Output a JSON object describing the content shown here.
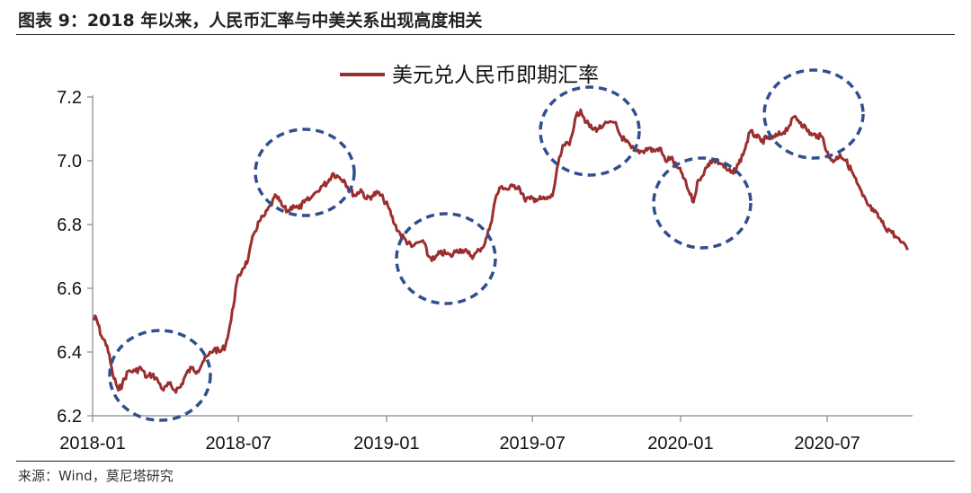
{
  "header": {
    "figure_title": "图表 9：2018 年以来，人民币汇率与中美关系出现高度相关"
  },
  "footer": {
    "source": "来源：Wind，莫尼塔研究"
  },
  "colors": {
    "series_line": "#9b2f2f",
    "highlight_circle": "#2f4f8f",
    "axis": "#888888"
  },
  "chart_data": {
    "type": "line",
    "title": "",
    "xlabel": "",
    "ylabel": "",
    "ylim": [
      6.2,
      7.2
    ],
    "xlim": [
      "2018-01",
      "2020-10"
    ],
    "y_ticks": [
      "6.2",
      "6.4",
      "6.6",
      "6.8",
      "7.0",
      "7.2"
    ],
    "x_ticks": [
      "2018-01",
      "2018-07",
      "2019-01",
      "2019-07",
      "2020-01",
      "2020-07"
    ],
    "grid": false,
    "legend_position": "top-center",
    "series": [
      {
        "name": "美元兑人民币即期汇率",
        "x": [
          "2018-01-02",
          "2018-01-05",
          "2018-01-12",
          "2018-01-19",
          "2018-01-26",
          "2018-02-02",
          "2018-02-07",
          "2018-02-14",
          "2018-02-23",
          "2018-03-02",
          "2018-03-09",
          "2018-03-16",
          "2018-03-23",
          "2018-03-30",
          "2018-04-06",
          "2018-04-13",
          "2018-04-20",
          "2018-04-27",
          "2018-05-04",
          "2018-05-11",
          "2018-05-18",
          "2018-05-25",
          "2018-06-01",
          "2018-06-08",
          "2018-06-15",
          "2018-06-22",
          "2018-06-29",
          "2018-07-06",
          "2018-07-13",
          "2018-07-20",
          "2018-07-27",
          "2018-08-03",
          "2018-08-10",
          "2018-08-17",
          "2018-08-24",
          "2018-08-31",
          "2018-09-07",
          "2018-09-14",
          "2018-09-21",
          "2018-09-28",
          "2018-10-12",
          "2018-10-19",
          "2018-10-26",
          "2018-11-02",
          "2018-11-09",
          "2018-11-16",
          "2018-11-23",
          "2018-11-30",
          "2018-12-07",
          "2018-12-14",
          "2018-12-21",
          "2018-12-28",
          "2019-01-04",
          "2019-01-11",
          "2019-01-18",
          "2019-01-25",
          "2019-02-01",
          "2019-02-15",
          "2019-02-22",
          "2019-03-01",
          "2019-03-08",
          "2019-03-15",
          "2019-03-22",
          "2019-03-29",
          "2019-04-05",
          "2019-04-12",
          "2019-04-19",
          "2019-04-26",
          "2019-05-03",
          "2019-05-10",
          "2019-05-17",
          "2019-05-24",
          "2019-05-31",
          "2019-06-07",
          "2019-06-14",
          "2019-06-21",
          "2019-06-28",
          "2019-07-05",
          "2019-07-12",
          "2019-07-19",
          "2019-07-26",
          "2019-08-02",
          "2019-08-09",
          "2019-08-16",
          "2019-08-23",
          "2019-08-30",
          "2019-09-06",
          "2019-09-13",
          "2019-09-20",
          "2019-09-27",
          "2019-10-11",
          "2019-10-18",
          "2019-10-25",
          "2019-11-01",
          "2019-11-08",
          "2019-11-15",
          "2019-11-22",
          "2019-11-29",
          "2019-12-06",
          "2019-12-13",
          "2019-12-20",
          "2019-12-27",
          "2020-01-03",
          "2020-01-10",
          "2020-01-17",
          "2020-01-23",
          "2020-02-03",
          "2020-02-07",
          "2020-02-14",
          "2020-02-21",
          "2020-02-28",
          "2020-03-06",
          "2020-03-13",
          "2020-03-20",
          "2020-03-27",
          "2020-04-03",
          "2020-04-10",
          "2020-04-17",
          "2020-04-24",
          "2020-05-01",
          "2020-05-08",
          "2020-05-15",
          "2020-05-22",
          "2020-05-29",
          "2020-06-05",
          "2020-06-12",
          "2020-06-19",
          "2020-06-26",
          "2020-07-03",
          "2020-07-10",
          "2020-07-17",
          "2020-07-24",
          "2020-07-31",
          "2020-08-07",
          "2020-08-14",
          "2020-08-21",
          "2020-08-28",
          "2020-09-04",
          "2020-09-11",
          "2020-09-18",
          "2020-09-25",
          "2020-10-09"
        ],
        "values": [
          6.5,
          6.51,
          6.45,
          6.42,
          6.33,
          6.28,
          6.3,
          6.34,
          6.34,
          6.35,
          6.32,
          6.33,
          6.31,
          6.28,
          6.3,
          6.28,
          6.29,
          6.33,
          6.35,
          6.34,
          6.37,
          6.39,
          6.41,
          6.4,
          6.42,
          6.5,
          6.62,
          6.66,
          6.69,
          6.77,
          6.81,
          6.83,
          6.86,
          6.89,
          6.86,
          6.84,
          6.86,
          6.85,
          6.87,
          6.88,
          6.92,
          6.93,
          6.96,
          6.95,
          6.94,
          6.91,
          6.89,
          6.91,
          6.88,
          6.89,
          6.9,
          6.88,
          6.85,
          6.8,
          6.77,
          6.75,
          6.73,
          6.75,
          6.7,
          6.69,
          6.71,
          6.71,
          6.7,
          6.72,
          6.72,
          6.71,
          6.7,
          6.72,
          6.74,
          6.8,
          6.89,
          6.92,
          6.91,
          6.92,
          6.92,
          6.88,
          6.88,
          6.88,
          6.88,
          6.88,
          6.89,
          6.99,
          7.05,
          7.05,
          7.13,
          7.16,
          7.12,
          7.1,
          7.1,
          7.11,
          7.12,
          7.08,
          7.06,
          7.04,
          7.03,
          7.03,
          7.04,
          7.03,
          7.04,
          7.0,
          7.01,
          6.98,
          6.96,
          6.91,
          6.87,
          6.94,
          6.98,
          7.0,
          7.0,
          6.99,
          6.97,
          6.96,
          6.99,
          7.03,
          7.09,
          7.08,
          7.06,
          7.07,
          7.07,
          7.08,
          7.09,
          7.11,
          7.14,
          7.12,
          7.1,
          7.08,
          7.08,
          7.07,
          7.01,
          7.0,
          7.02,
          7.0,
          6.97,
          6.93,
          6.89,
          6.86,
          6.84,
          6.82,
          6.79,
          6.78,
          6.76,
          6.72
        ]
      }
    ]
  }
}
